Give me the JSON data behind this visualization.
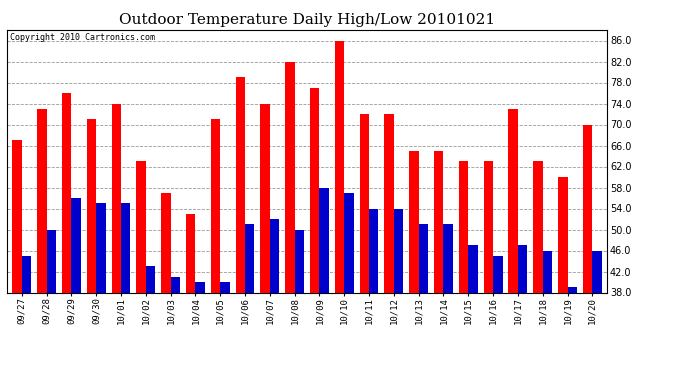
{
  "title": "Outdoor Temperature Daily High/Low 20101021",
  "copyright": "Copyright 2010 Cartronics.com",
  "dates": [
    "09/27",
    "09/28",
    "09/29",
    "09/30",
    "10/01",
    "10/02",
    "10/03",
    "10/04",
    "10/05",
    "10/06",
    "10/07",
    "10/08",
    "10/09",
    "10/10",
    "10/11",
    "10/12",
    "10/13",
    "10/14",
    "10/15",
    "10/16",
    "10/17",
    "10/18",
    "10/19",
    "10/20"
  ],
  "highs": [
    67,
    73,
    76,
    71,
    74,
    63,
    57,
    53,
    71,
    79,
    74,
    82,
    77,
    86,
    72,
    72,
    65,
    65,
    63,
    63,
    73,
    63,
    60,
    70
  ],
  "lows": [
    45,
    50,
    56,
    55,
    55,
    43,
    41,
    40,
    40,
    51,
    52,
    50,
    58,
    57,
    54,
    54,
    51,
    51,
    47,
    45,
    47,
    46,
    39,
    46
  ],
  "high_color": "#ff0000",
  "low_color": "#0000cc",
  "bg_color": "#ffffff",
  "plot_bg_color": "#ffffff",
  "grid_color": "#999999",
  "title_fontsize": 11,
  "ylim_min": 38,
  "ylim_max": 88,
  "yticks": [
    38.0,
    42.0,
    46.0,
    50.0,
    54.0,
    58.0,
    62.0,
    66.0,
    70.0,
    74.0,
    78.0,
    82.0,
    86.0
  ],
  "bar_width": 0.38
}
